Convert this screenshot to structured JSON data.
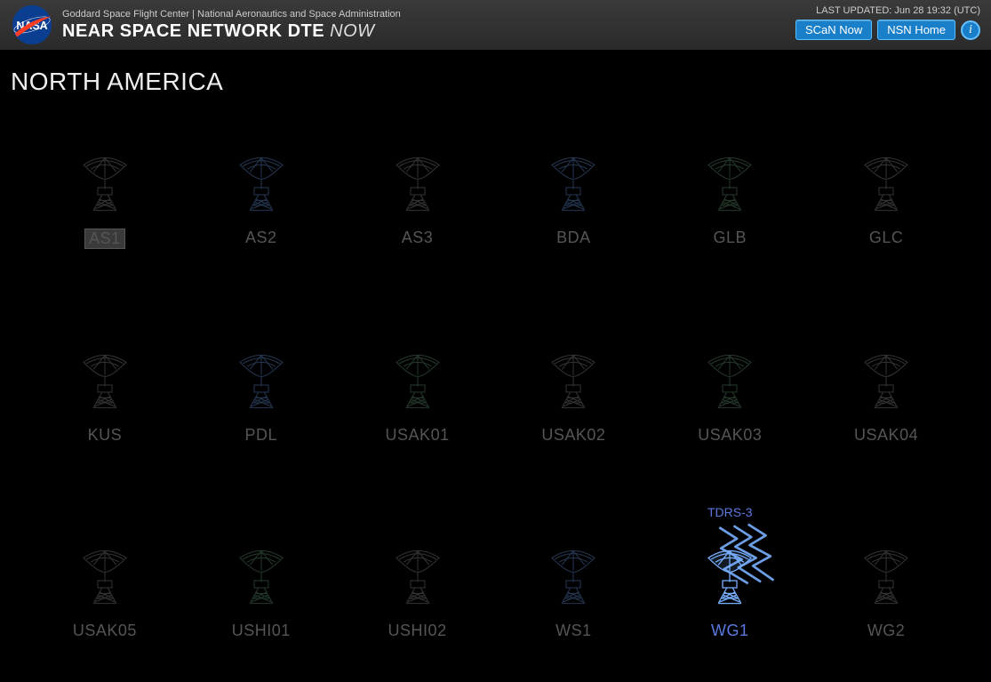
{
  "header": {
    "org_line": "Goddard Space Flight Center | National Aeronautics and Space Administration",
    "title_main": "NEAR SPACE NETWORK DTE",
    "title_now": "NOW",
    "last_updated": "LAST UPDATED: Jun 28 19:32 (UTC)",
    "buttons": {
      "scan": "SCaN Now",
      "nsn": "NSN Home"
    }
  },
  "region_title": "NORTH AMERICA",
  "colors": {
    "gray": "#3a3a3a",
    "blue": "#2a3d5a",
    "green": "#2a4030",
    "active": "#78b0ff",
    "label": "#555555",
    "label_active": "#5a7ae0"
  },
  "stations": [
    {
      "id": "AS1",
      "color": "gray",
      "selected": true,
      "active": false
    },
    {
      "id": "AS2",
      "color": "blue",
      "selected": false,
      "active": false
    },
    {
      "id": "AS3",
      "color": "gray",
      "selected": false,
      "active": false
    },
    {
      "id": "BDA",
      "color": "blue",
      "selected": false,
      "active": false
    },
    {
      "id": "GLB",
      "color": "green",
      "selected": false,
      "active": false
    },
    {
      "id": "GLC",
      "color": "gray",
      "selected": false,
      "active": false
    },
    {
      "id": "KUS",
      "color": "gray",
      "selected": false,
      "active": false
    },
    {
      "id": "PDL",
      "color": "blue",
      "selected": false,
      "active": false
    },
    {
      "id": "USAK01",
      "color": "green",
      "selected": false,
      "active": false
    },
    {
      "id": "USAK02",
      "color": "gray",
      "selected": false,
      "active": false
    },
    {
      "id": "USAK03",
      "color": "green",
      "selected": false,
      "active": false
    },
    {
      "id": "USAK04",
      "color": "gray",
      "selected": false,
      "active": false
    },
    {
      "id": "USAK05",
      "color": "gray",
      "selected": false,
      "active": false
    },
    {
      "id": "USHI01",
      "color": "green",
      "selected": false,
      "active": false
    },
    {
      "id": "USHI02",
      "color": "gray",
      "selected": false,
      "active": false
    },
    {
      "id": "WS1",
      "color": "blue",
      "selected": false,
      "active": false
    },
    {
      "id": "WG1",
      "color": "active",
      "selected": false,
      "active": true,
      "signal_label": "TDRS-3"
    },
    {
      "id": "WG2",
      "color": "gray",
      "selected": false,
      "active": false
    }
  ]
}
